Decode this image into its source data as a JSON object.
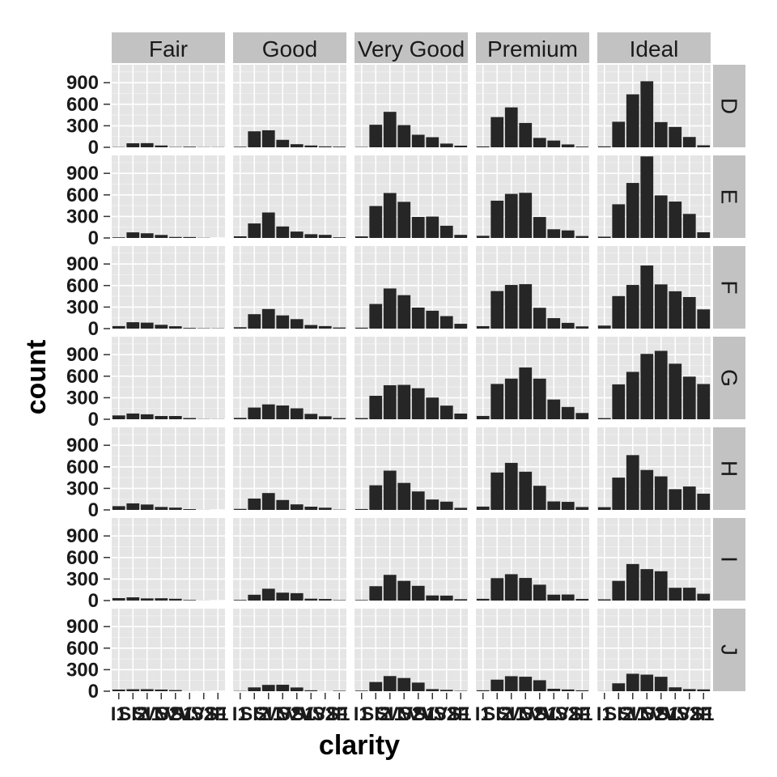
{
  "chart_data": {
    "type": "bar",
    "title": "",
    "xlabel": "clarity",
    "ylabel": "count",
    "ylim": [
      0,
      1150
    ],
    "y_ticks": [
      "0",
      "300",
      "600",
      "900"
    ],
    "grid": "on",
    "panel_background": "#e5e5e5",
    "strip_background": "#c2c2c2",
    "bar_color": "#262626",
    "columns": [
      "Fair",
      "Good",
      "Very Good",
      "Premium",
      "Ideal"
    ],
    "rows": [
      "D",
      "E",
      "F",
      "G",
      "H",
      "I",
      "J"
    ],
    "categories": [
      "I1",
      "SI2",
      "SI1",
      "VS2",
      "VS1",
      "VVS2",
      "VVS1",
      "IF"
    ],
    "panels": [
      {
        "row": "D",
        "col": "Fair",
        "values": [
          4,
          56,
          58,
          25,
          5,
          9,
          3,
          3
        ]
      },
      {
        "row": "D",
        "col": "Good",
        "values": [
          8,
          223,
          237,
          104,
          43,
          25,
          13,
          9
        ]
      },
      {
        "row": "D",
        "col": "Very Good",
        "values": [
          5,
          314,
          494,
          309,
          175,
          141,
          52,
          23
        ]
      },
      {
        "row": "D",
        "col": "Premium",
        "values": [
          12,
          421,
          556,
          339,
          131,
          94,
          40,
          10
        ]
      },
      {
        "row": "D",
        "col": "Ideal",
        "values": [
          13,
          356,
          738,
          920,
          351,
          284,
          144,
          28
        ]
      },
      {
        "row": "E",
        "col": "Fair",
        "values": [
          9,
          78,
          65,
          42,
          14,
          13,
          3,
          0
        ]
      },
      {
        "row": "E",
        "col": "Good",
        "values": [
          23,
          202,
          355,
          160,
          89,
          52,
          43,
          9
        ]
      },
      {
        "row": "E",
        "col": "Very Good",
        "values": [
          22,
          445,
          626,
          503,
          293,
          298,
          170,
          43
        ]
      },
      {
        "row": "E",
        "col": "Premium",
        "values": [
          30,
          519,
          614,
          629,
          292,
          121,
          105,
          27
        ]
      },
      {
        "row": "E",
        "col": "Ideal",
        "values": [
          18,
          469,
          766,
          1136,
          593,
          507,
          335,
          79
        ]
      },
      {
        "row": "F",
        "col": "Fair",
        "values": [
          35,
          89,
          83,
          53,
          33,
          10,
          5,
          4
        ]
      },
      {
        "row": "F",
        "col": "Good",
        "values": [
          19,
          201,
          273,
          184,
          132,
          50,
          35,
          15
        ]
      },
      {
        "row": "F",
        "col": "Very Good",
        "values": [
          13,
          343,
          559,
          466,
          293,
          249,
          174,
          67
        ]
      },
      {
        "row": "F",
        "col": "Premium",
        "values": [
          34,
          523,
          608,
          619,
          290,
          146,
          80,
          31
        ]
      },
      {
        "row": "F",
        "col": "Ideal",
        "values": [
          42,
          453,
          608,
          879,
          616,
          520,
          440,
          268
        ]
      },
      {
        "row": "G",
        "col": "Fair",
        "values": [
          53,
          80,
          69,
          45,
          45,
          17,
          3,
          2
        ]
      },
      {
        "row": "G",
        "col": "Good",
        "values": [
          19,
          163,
          207,
          192,
          152,
          75,
          41,
          16
        ]
      },
      {
        "row": "G",
        "col": "Very Good",
        "values": [
          16,
          327,
          474,
          479,
          432,
          302,
          190,
          79
        ]
      },
      {
        "row": "G",
        "col": "Premium",
        "values": [
          46,
          492,
          566,
          721,
          566,
          275,
          171,
          87
        ]
      },
      {
        "row": "G",
        "col": "Ideal",
        "values": [
          16,
          486,
          660,
          910,
          953,
          774,
          594,
          491
        ]
      },
      {
        "row": "H",
        "col": "Fair",
        "values": [
          52,
          91,
          75,
          41,
          32,
          11,
          1,
          0
        ]
      },
      {
        "row": "H",
        "col": "Good",
        "values": [
          14,
          158,
          235,
          138,
          77,
          45,
          31,
          4
        ]
      },
      {
        "row": "H",
        "col": "Very Good",
        "values": [
          12,
          343,
          547,
          376,
          257,
          145,
          115,
          29
        ]
      },
      {
        "row": "H",
        "col": "Premium",
        "values": [
          46,
          521,
          655,
          532,
          336,
          118,
          112,
          40
        ]
      },
      {
        "row": "H",
        "col": "Ideal",
        "values": [
          38,
          450,
          763,
          556,
          467,
          289,
          326,
          226
        ]
      },
      {
        "row": "I",
        "col": "Fair",
        "values": [
          34,
          45,
          30,
          32,
          25,
          8,
          1,
          0
        ]
      },
      {
        "row": "I",
        "col": "Good",
        "values": [
          9,
          81,
          165,
          110,
          103,
          26,
          22,
          6
        ]
      },
      {
        "row": "I",
        "col": "Very Good",
        "values": [
          8,
          200,
          358,
          274,
          205,
          71,
          69,
          19
        ]
      },
      {
        "row": "I",
        "col": "Premium",
        "values": [
          24,
          312,
          367,
          315,
          221,
          82,
          84,
          23
        ]
      },
      {
        "row": "I",
        "col": "Ideal",
        "values": [
          17,
          274,
          509,
          438,
          408,
          178,
          179,
          95
        ]
      },
      {
        "row": "J",
        "col": "Fair",
        "values": [
          23,
          27,
          28,
          23,
          16,
          1,
          1,
          0
        ]
      },
      {
        "row": "J",
        "col": "Good",
        "values": [
          4,
          53,
          88,
          90,
          52,
          13,
          1,
          6
        ]
      },
      {
        "row": "J",
        "col": "Very Good",
        "values": [
          8,
          128,
          211,
          184,
          120,
          29,
          19,
          5
        ]
      },
      {
        "row": "J",
        "col": "Premium",
        "values": [
          13,
          161,
          209,
          202,
          153,
          34,
          24,
          12
        ]
      },
      {
        "row": "J",
        "col": "Ideal",
        "values": [
          2,
          110,
          243,
          231,
          201,
          54,
          29,
          25
        ]
      }
    ]
  }
}
